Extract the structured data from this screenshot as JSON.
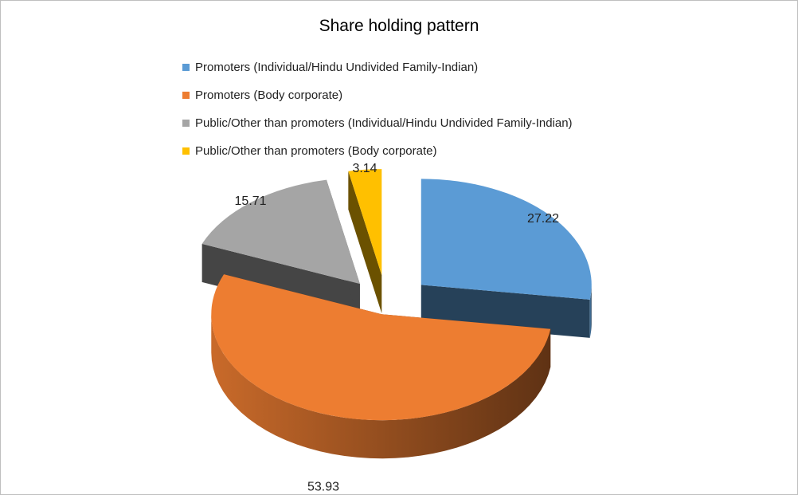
{
  "chart_data": {
    "type": "pie",
    "variant": "3d-exploded",
    "title": "Share holding pattern",
    "legend_position": "top",
    "categories": [
      "Promoters (Individual/Hindu Undivided Family-Indian)",
      "Promoters (Body corporate)",
      "Public/Other than promoters (Individual/Hindu Undivided Family-Indian)",
      "Public/Other than promoters (Body corporate)"
    ],
    "values": [
      27.22,
      53.93,
      15.71,
      3.14
    ],
    "value_labels": [
      "27.22",
      "53.93",
      "15.71",
      "3.14"
    ],
    "colors": [
      "#5b9bd5",
      "#ed7d31",
      "#a5a5a5",
      "#ffc000"
    ]
  }
}
